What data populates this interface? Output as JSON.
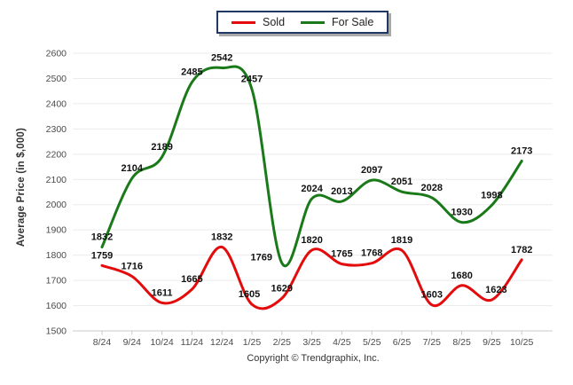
{
  "legend": {
    "items": [
      {
        "label": "Sold",
        "color": "#e30b0b"
      },
      {
        "label": "For Sale",
        "color": "#1a7a1a"
      }
    ],
    "border_color": "#1f3864"
  },
  "footer": {
    "copyright": "Copyright © Trendgraphix, Inc."
  },
  "colors": {
    "sold_line": "#e30b0b",
    "for_sale_line": "#1a7a1a",
    "gridline": "#ececec",
    "axis_line": "#c9c9c9",
    "tick_label": "#4a4a4a",
    "data_label": "#111111"
  },
  "chart_data": {
    "type": "line",
    "title": "",
    "xlabel": "",
    "ylabel": "Average Price (in $,000)",
    "ylim": [
      1500,
      2600
    ],
    "ytick_step": 100,
    "grid": true,
    "legend_position": "top-center",
    "categories": [
      "8/24",
      "9/24",
      "10/24",
      "11/24",
      "12/24",
      "1/25",
      "2/25",
      "3/25",
      "4/25",
      "5/25",
      "6/25",
      "7/25",
      "8/25",
      "9/25",
      "10/25"
    ],
    "series": [
      {
        "name": "Sold",
        "color": "#e30b0b",
        "values": [
          1759,
          1716,
          1611,
          1665,
          1832,
          1605,
          1629,
          1820,
          1765,
          1768,
          1819,
          1603,
          1680,
          1623,
          1782
        ]
      },
      {
        "name": "For Sale",
        "color": "#1a7a1a",
        "values": [
          1832,
          2104,
          2189,
          2485,
          2542,
          2457,
          1769,
          2024,
          2013,
          2097,
          2051,
          2028,
          1930,
          1998,
          2173
        ]
      }
    ]
  }
}
